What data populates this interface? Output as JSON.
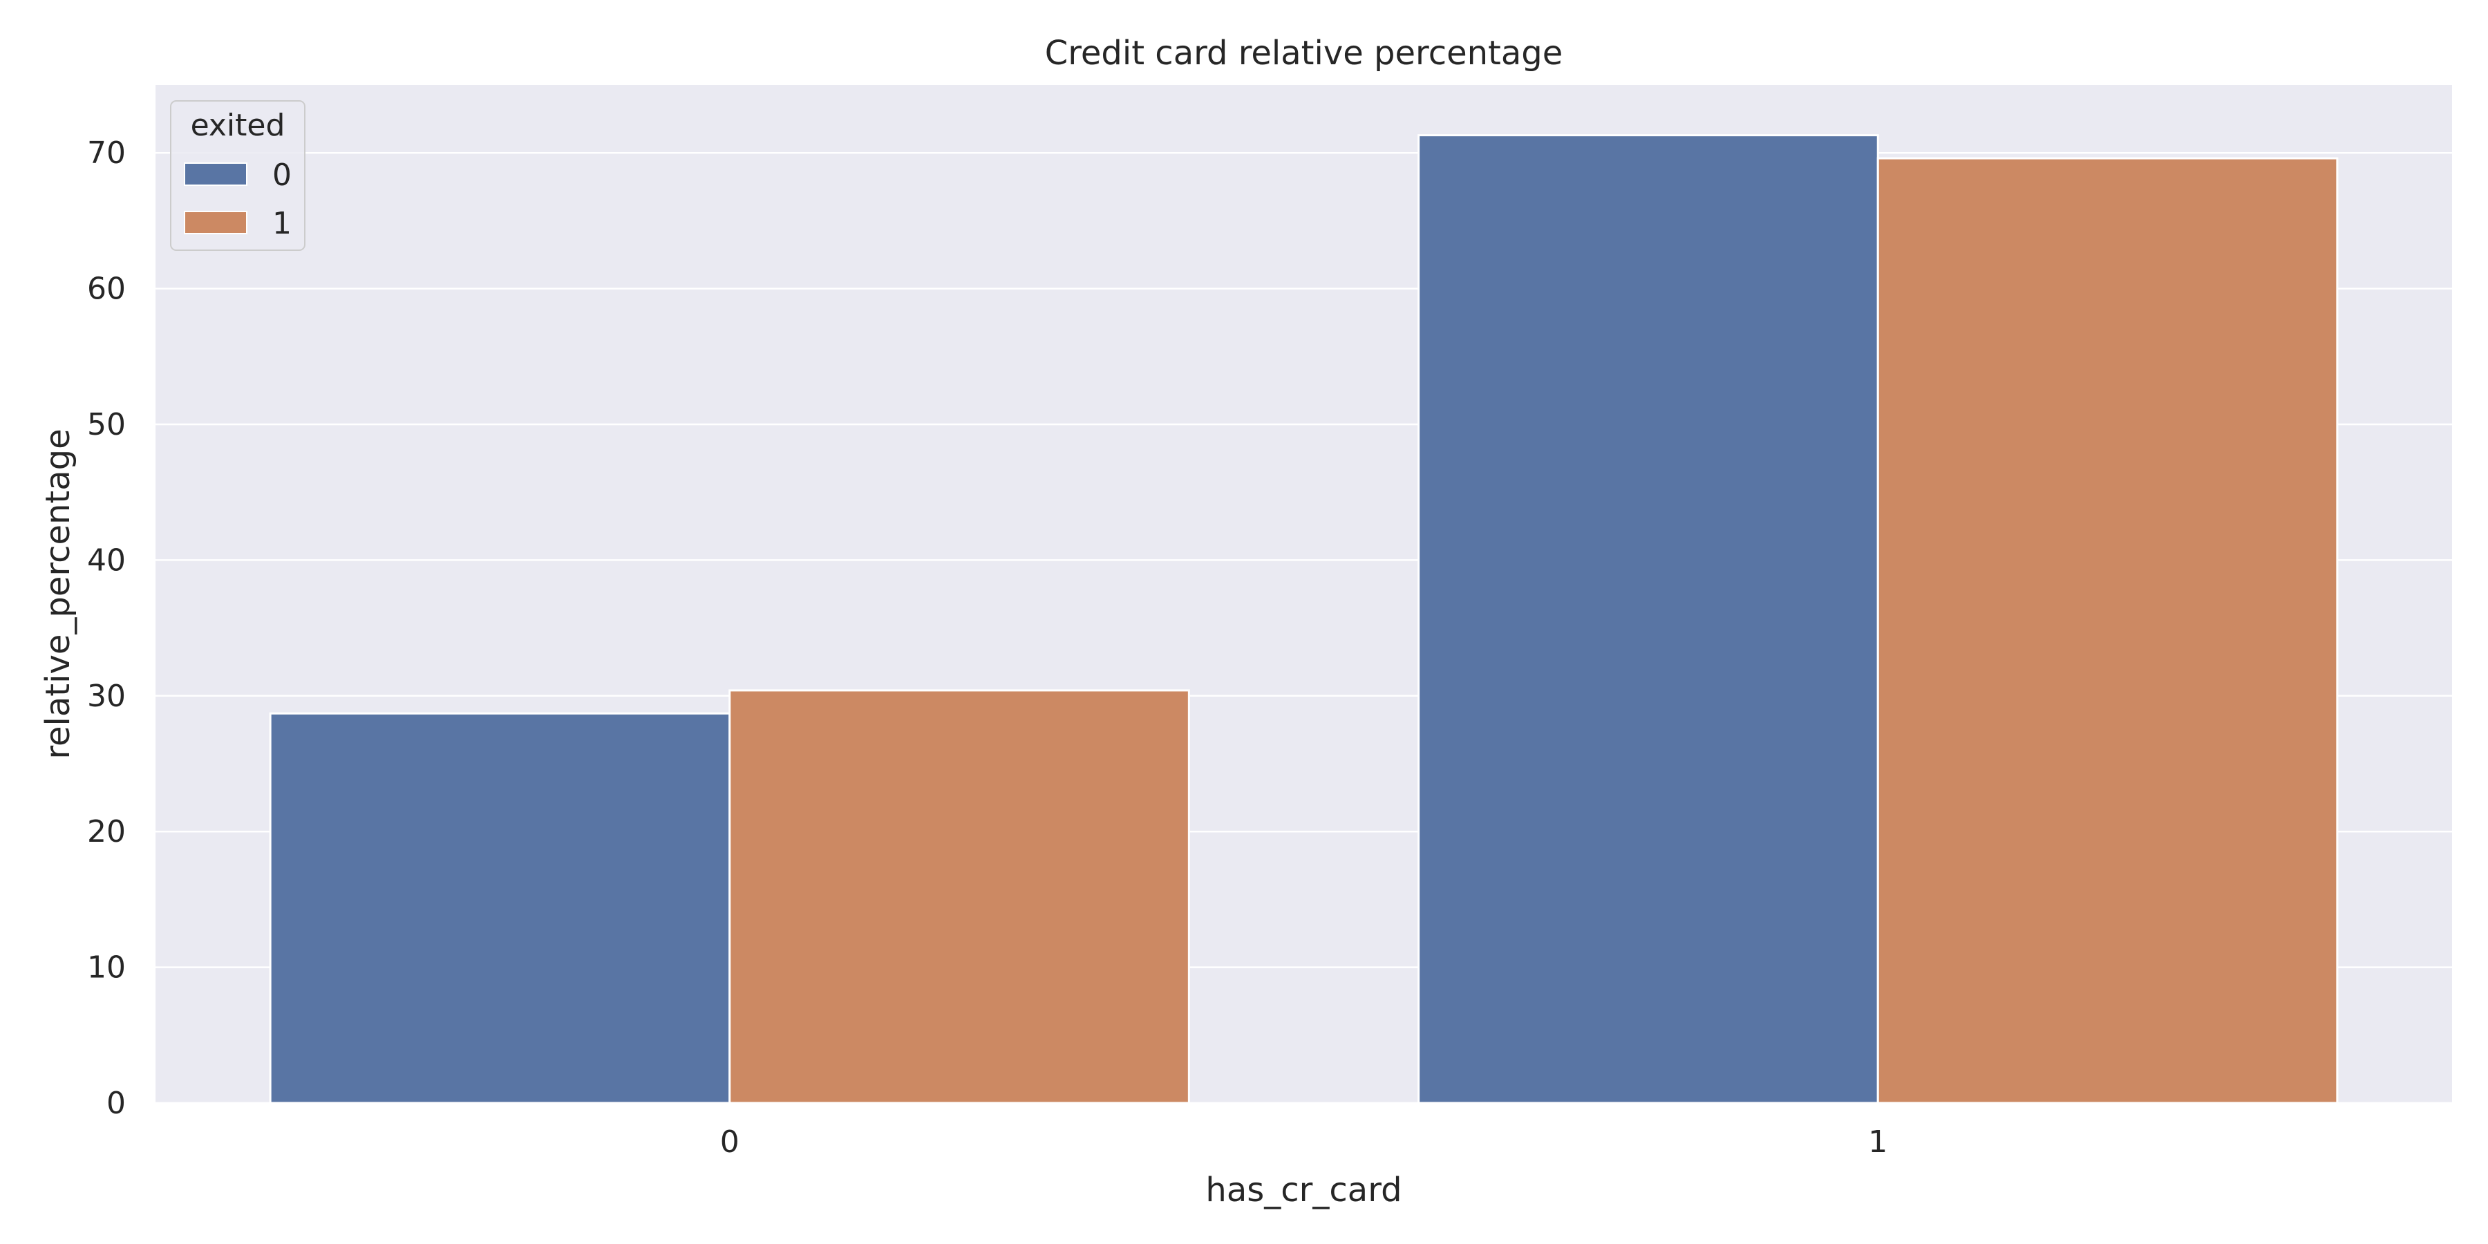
{
  "chart_data": {
    "type": "bar",
    "title": "Credit card relative percentage",
    "xlabel": "has_cr_card",
    "ylabel": "relative_percentage",
    "categories": [
      "0",
      "1"
    ],
    "series": [
      {
        "name": "0",
        "values": [
          28.7,
          71.3
        ]
      },
      {
        "name": "1",
        "values": [
          30.4,
          69.6
        ]
      }
    ],
    "ylim": [
      0,
      75
    ],
    "yticks": [
      0,
      10,
      20,
      30,
      40,
      50,
      60,
      70
    ],
    "grid": true,
    "legend": {
      "title": "exited",
      "placement": "top-left"
    },
    "colors": {
      "series": [
        "#5975a4",
        "#cc8963"
      ],
      "background": "#eaeaf2",
      "grid": "#ffffff"
    }
  }
}
